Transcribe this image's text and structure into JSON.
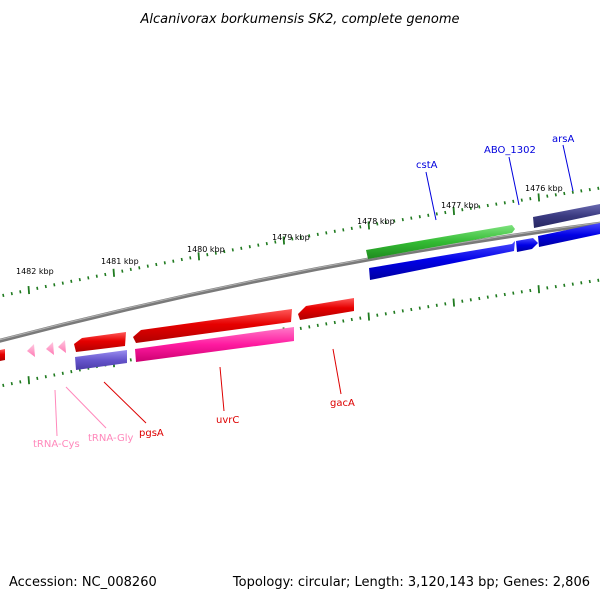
{
  "title": "Alcanivorax borkumensis SK2, complete genome",
  "footer": {
    "accession": "Accession: NC_008260",
    "summary": "Topology: circular; Length: 3,120,143 bp; Genes: 2,806"
  },
  "colors": {
    "backbone": "#808080",
    "tick": "#1f7a1f",
    "gene_red": "#e60000",
    "gene_pink": "#ff1aa0",
    "gene_blue": "#0000dd",
    "gene_green": "#33bb33",
    "gene_navy": "#3a3a80",
    "gene_slate": "#6655cc",
    "trna": "#ff99cc"
  },
  "kbp_labels": [
    {
      "id": "k1482",
      "text": "1482 kbp"
    },
    {
      "id": "k1481",
      "text": "1481 kbp"
    },
    {
      "id": "k1480",
      "text": "1480 kbp"
    },
    {
      "id": "k1479",
      "text": "1479 kbp"
    },
    {
      "id": "k1478",
      "text": "1478 kbp"
    },
    {
      "id": "k1477",
      "text": "1477 kbp"
    },
    {
      "id": "k1476",
      "text": "1476 kbp"
    }
  ],
  "gene_labels": [
    {
      "id": "cstA",
      "text": "cstA",
      "color": "#0000dd"
    },
    {
      "id": "ABO_1302",
      "text": "ABO_1302",
      "color": "#0000dd"
    },
    {
      "id": "arsA",
      "text": "arsA",
      "color": "#0000dd"
    },
    {
      "id": "pgsA",
      "text": "pgsA",
      "color": "#dd0000"
    },
    {
      "id": "uvrC",
      "text": "uvrC",
      "color": "#dd0000"
    },
    {
      "id": "gacA",
      "text": "gacA",
      "color": "#dd0000"
    },
    {
      "id": "tRNA-Cys",
      "text": "tRNA-Cys",
      "color": "#ff88bb"
    },
    {
      "id": "tRNA-Gly",
      "text": "tRNA-Gly",
      "color": "#ff88bb"
    }
  ]
}
